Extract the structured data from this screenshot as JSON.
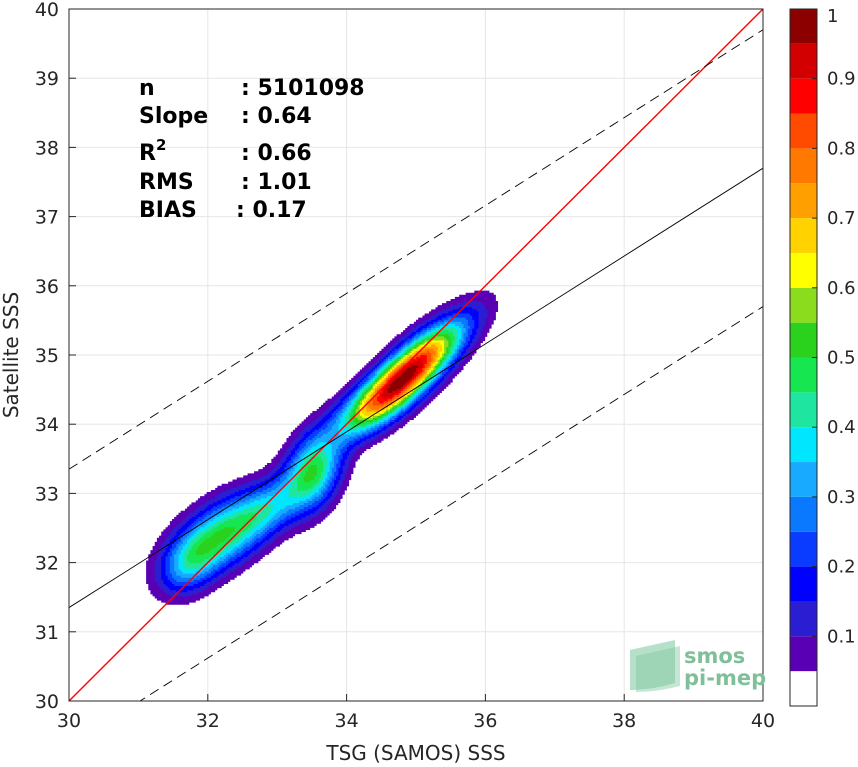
{
  "chart_data": {
    "type": "heatmap",
    "subtype": "density-contour-scatter",
    "title": "",
    "xlabel": "TSG (SAMOS) SSS",
    "ylabel": "Satellite SSS",
    "xlim": [
      30,
      40
    ],
    "ylim": [
      30,
      40
    ],
    "xticks": [
      30,
      32,
      34,
      36,
      38,
      40
    ],
    "yticks": [
      30,
      31,
      32,
      33,
      34,
      35,
      36,
      37,
      38,
      39,
      40
    ],
    "grid": true,
    "stats": [
      {
        "label": "n",
        "value": ": 5101098"
      },
      {
        "label": "Slope",
        "value": ": 0.64"
      },
      {
        "label": "R",
        "superscript": "2",
        "value": ": 0.66"
      },
      {
        "label": "RMS",
        "value": ": 1.01"
      },
      {
        "label": "BIAS",
        "value": ": 0.17"
      }
    ],
    "lines": [
      {
        "name": "identity",
        "color": "#ff0000",
        "style": "solid",
        "x": [
          30,
          40
        ],
        "y": [
          30,
          40
        ]
      },
      {
        "name": "regression",
        "color": "#000000",
        "style": "solid",
        "x": [
          30,
          40
        ],
        "y": [
          31.35,
          37.7
        ]
      },
      {
        "name": "upper-bound",
        "color": "#000000",
        "style": "dashed",
        "x": [
          30,
          40
        ],
        "y": [
          33.35,
          39.7
        ]
      },
      {
        "name": "lower-bound",
        "color": "#000000",
        "style": "dashed",
        "x": [
          30,
          40
        ],
        "y": [
          29.35,
          35.7
        ]
      }
    ],
    "density_peaks": [
      {
        "x": 34.9,
        "y": 34.75,
        "sx": 0.52,
        "sy": 0.48,
        "rho": 0.82,
        "amp": 1.0
      },
      {
        "x": 34.3,
        "y": 34.2,
        "sx": 0.4,
        "sy": 0.3,
        "rho": 0.6,
        "amp": 0.28
      },
      {
        "x": 33.5,
        "y": 33.3,
        "sx": 0.28,
        "sy": 0.38,
        "rho": 0.3,
        "amp": 0.5
      },
      {
        "x": 32.2,
        "y": 32.4,
        "sx": 0.48,
        "sy": 0.4,
        "rho": 0.55,
        "amp": 0.5
      },
      {
        "x": 31.7,
        "y": 31.95,
        "sx": 0.28,
        "sy": 0.3,
        "rho": 0.3,
        "amp": 0.22
      },
      {
        "x": 32.9,
        "y": 32.8,
        "sx": 0.32,
        "sy": 0.3,
        "rho": 0.5,
        "amp": 0.22
      }
    ],
    "colorbar": {
      "range": [
        0,
        1
      ],
      "ticks": [
        0.1,
        0.2,
        0.3,
        0.4,
        0.5,
        0.6,
        0.7,
        0.8,
        0.9,
        1
      ],
      "tick_labels": [
        "0.1",
        "0.2",
        "0.3",
        "0.4",
        "0.5",
        "0.6",
        "0.7",
        "0.8",
        "0.9",
        "1"
      ],
      "levels": [
        0.05,
        0.1,
        0.15,
        0.2,
        0.25,
        0.3,
        0.35,
        0.4,
        0.45,
        0.5,
        0.55,
        0.6,
        0.65,
        0.7,
        0.75,
        0.8,
        0.85,
        0.9,
        0.95,
        1.0
      ],
      "colors": [
        "#ffffff",
        "#5a00b4",
        "#2b1ed2",
        "#0000ff",
        "#0a3cff",
        "#0a78ff",
        "#18aaff",
        "#00e6ff",
        "#1ee6a0",
        "#16e650",
        "#2ad21e",
        "#8cdc1e",
        "#ffff00",
        "#ffd200",
        "#ffa000",
        "#ff7800",
        "#ff4b00",
        "#ff0000",
        "#d20000",
        "#8c0000"
      ]
    }
  },
  "logo": {
    "line1": "smos",
    "line2": "pi-mep"
  }
}
